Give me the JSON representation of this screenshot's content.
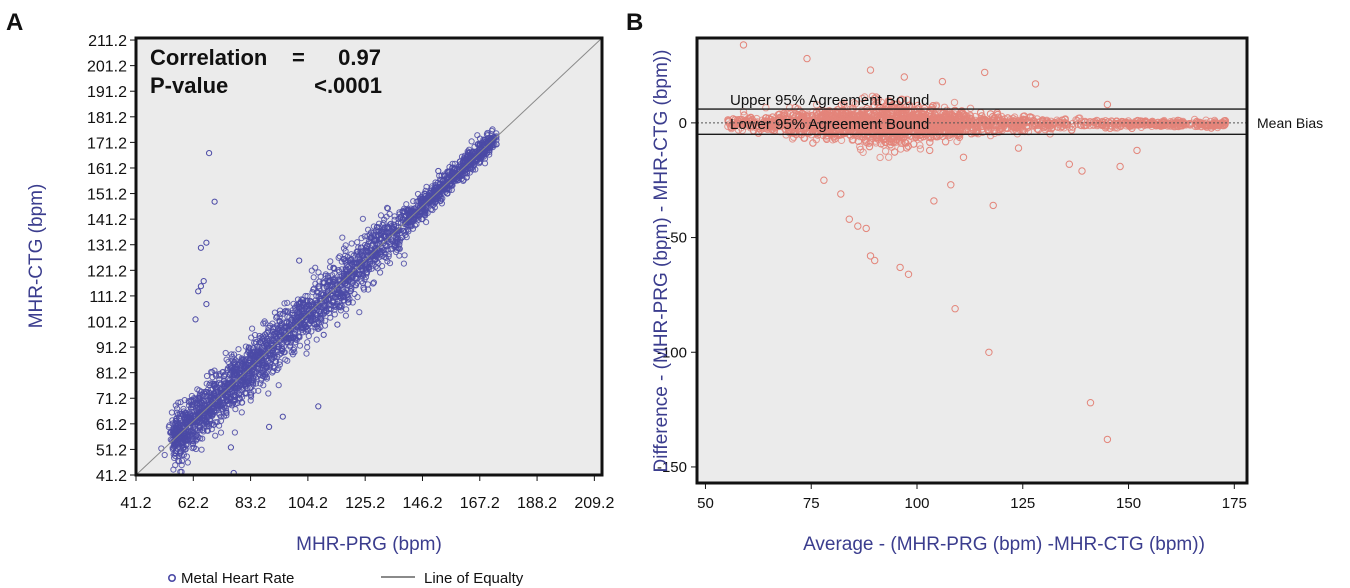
{
  "panels": {
    "a": {
      "label": "A"
    },
    "b": {
      "label": "B"
    }
  },
  "chart_data": [
    {
      "type": "scatter",
      "panel": "A",
      "xlabel": "MHR-PRG (bpm)",
      "ylabel": "MHR-CTG (bpm)",
      "xlim": [
        41.2,
        212
      ],
      "ylim": [
        41.2,
        212
      ],
      "xticks": [
        41.2,
        62.2,
        83.2,
        104.2,
        125.2,
        146.2,
        167.2,
        188.2,
        209.2
      ],
      "yticks": [
        41.2,
        51.2,
        61.2,
        71.2,
        81.2,
        91.2,
        101.2,
        111.2,
        121.2,
        131.2,
        141.2,
        151.2,
        161.2,
        171.2,
        181.2,
        191.2,
        201.2,
        211.2
      ],
      "annotations": {
        "correlation_label": "Correlation",
        "equals": "=",
        "correlation_value": "0.97",
        "pvalue_label": "P-value",
        "pvalue_value": "<.0001"
      },
      "legend": {
        "placement": "bottom",
        "entries": [
          "Metal Heart Rate",
          "Line of Equalty"
        ]
      },
      "reference_line": {
        "name": "Line of Equalty",
        "from": [
          41.2,
          41.2
        ],
        "to": [
          212,
          212
        ]
      },
      "main_band": {
        "x_start": 55,
        "x_end": 173,
        "spread": 5.5
      },
      "outliers": [
        [
          68,
          167
        ],
        [
          70,
          148
        ],
        [
          67,
          132
        ],
        [
          65,
          130
        ],
        [
          66,
          117
        ],
        [
          65,
          115
        ],
        [
          64,
          113
        ],
        [
          67,
          108
        ],
        [
          63,
          102
        ],
        [
          76,
          52
        ],
        [
          77,
          42
        ],
        [
          90,
          60
        ],
        [
          95,
          64
        ],
        [
          108,
          68
        ],
        [
          130,
          135
        ],
        [
          152,
          160
        ],
        [
          147,
          151
        ],
        [
          118,
          118
        ],
        [
          123,
          124
        ],
        [
          140,
          140
        ],
        [
          110,
          96
        ],
        [
          115,
          100
        ],
        [
          101,
          125
        ]
      ],
      "colors": {
        "points": "#4b4aa6",
        "line": "#8a8a8a",
        "background": "#ebebeb"
      }
    },
    {
      "type": "scatter",
      "panel": "B",
      "xlabel": "Average - (MHR-PRG (bpm) -MHR-CTG (bpm))",
      "ylabel": "Difference - (MHR-PRG (bpm) - MHR-CTG (bpm))",
      "xlim": [
        48,
        178
      ],
      "ylim": [
        -157,
        37
      ],
      "xticks": [
        50,
        75,
        100,
        125,
        150,
        175
      ],
      "yticks": [
        0,
        -50,
        -100,
        -150
      ],
      "reference_lines": [
        {
          "name": "Upper 95% Agreement Bound",
          "y": 6
        },
        {
          "name": "Mean Bias",
          "y": 0
        },
        {
          "name": "Lower 95% Agreement Bound",
          "y": -5
        }
      ],
      "annotations": {
        "upper_bound_label": "Upper 95% Agreement Bound",
        "lower_bound_label": "Lower 95% Agreement Bound",
        "mean_bias_label": "Mean Bias"
      },
      "main_band": {
        "x_start": 55,
        "x_end": 173,
        "peak_x": 92,
        "peak_spread": 9
      },
      "outliers": [
        [
          59,
          34
        ],
        [
          74,
          28
        ],
        [
          89,
          23
        ],
        [
          116,
          22
        ],
        [
          128,
          17
        ],
        [
          145,
          8
        ],
        [
          106,
          18
        ],
        [
          97,
          20
        ],
        [
          78,
          -25
        ],
        [
          82,
          -31
        ],
        [
          84,
          -42
        ],
        [
          86,
          -45
        ],
        [
          88,
          -46
        ],
        [
          89,
          -58
        ],
        [
          90,
          -60
        ],
        [
          96,
          -63
        ],
        [
          98,
          -66
        ],
        [
          104,
          -34
        ],
        [
          108,
          -27
        ],
        [
          118,
          -36
        ],
        [
          109,
          -81
        ],
        [
          117,
          -100
        ],
        [
          136,
          -18
        ],
        [
          139,
          -21
        ],
        [
          148,
          -19
        ],
        [
          152,
          -12
        ],
        [
          141,
          -122
        ],
        [
          145,
          -138
        ],
        [
          103,
          -12
        ],
        [
          111,
          -15
        ],
        [
          124,
          -11
        ]
      ],
      "colors": {
        "points": "#e3857a",
        "lines": "#1a1a1a",
        "background": "#ebebeb"
      }
    }
  ]
}
